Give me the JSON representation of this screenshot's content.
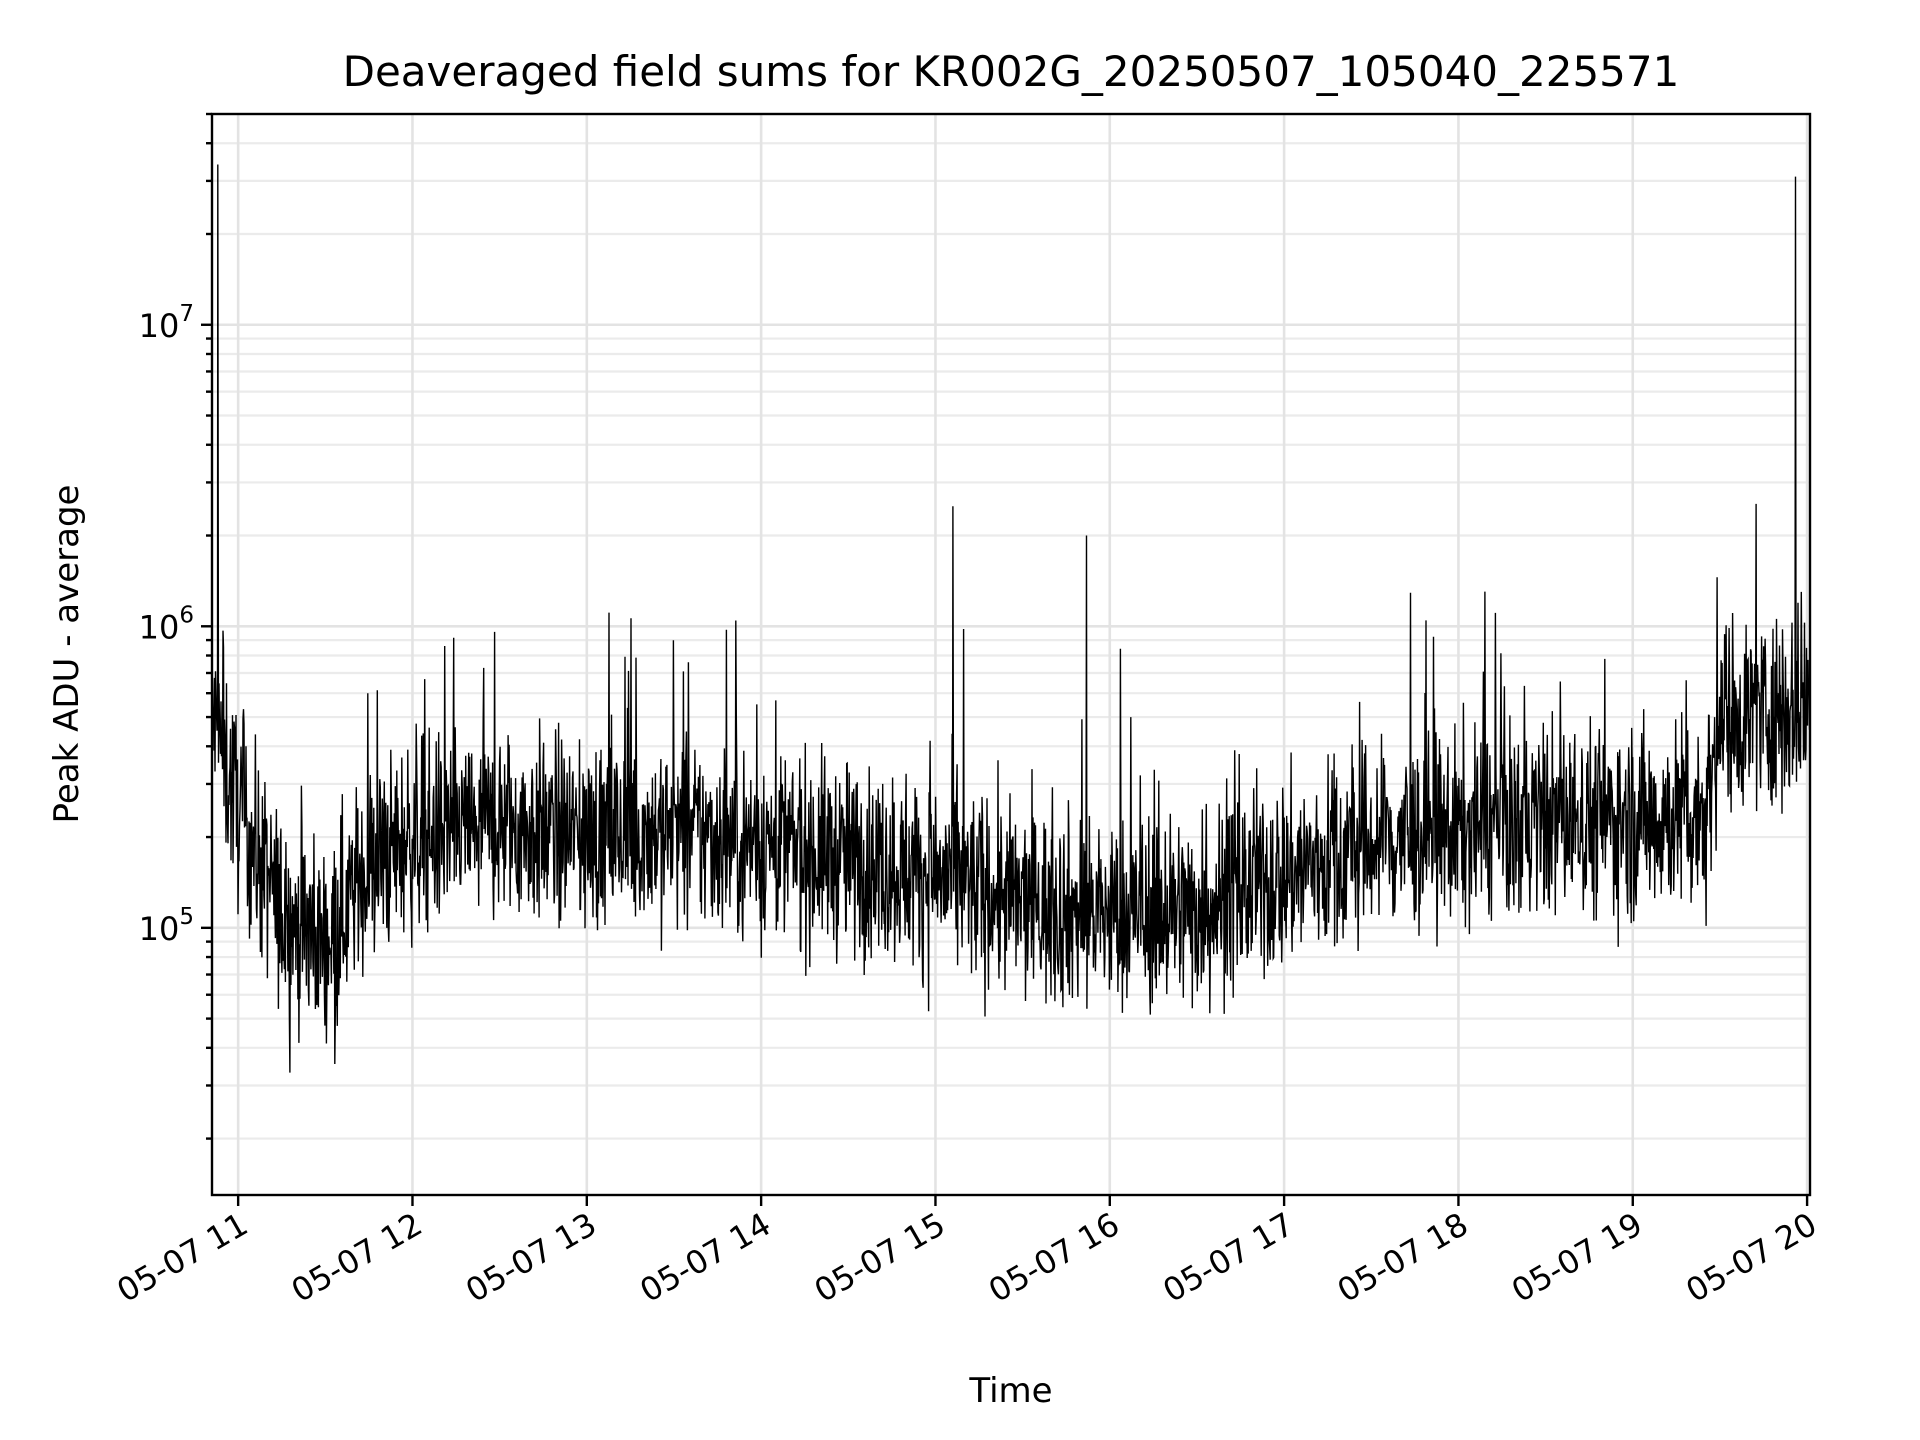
{
  "chart_data": {
    "type": "line",
    "title": "Deaveraged field sums for KR002G_20250507_105040_225571",
    "xlabel": "Time",
    "ylabel": "Peak ADU - average",
    "x_start": "2025-05-07T10:51:00",
    "x_end": "2025-05-07T20:01:00",
    "y_scale": "log",
    "ylim": [
      13000,
      50000000
    ],
    "grid": true,
    "legend": "none",
    "x_ticks": [
      "05-07 11",
      "05-07 12",
      "05-07 13",
      "05-07 14",
      "05-07 15",
      "05-07 16",
      "05-07 17",
      "05-07 18",
      "05-07 19",
      "05-07 20"
    ],
    "y_ticks": [
      {
        "value": 100000,
        "base": "10",
        "exp": "5"
      },
      {
        "value": 1000000,
        "base": "10",
        "exp": "6"
      },
      {
        "value": 10000000,
        "base": "10",
        "exp": "7"
      }
    ],
    "series_color": "#000000",
    "series": [
      {
        "values_note_free": true,
        "trend": [
          [
            "2025-05-07T10:51:00",
            500000
          ],
          [
            "2025-05-07T11:00:00",
            250000
          ],
          [
            "2025-05-07T11:15:00",
            110000
          ],
          [
            "2025-05-07T11:30:00",
            90000
          ],
          [
            "2025-05-07T11:45:00",
            160000
          ],
          [
            "2025-05-07T12:00:00",
            200000
          ],
          [
            "2025-05-07T12:30:00",
            220000
          ],
          [
            "2025-05-07T13:00:00",
            200000
          ],
          [
            "2025-05-07T13:30:00",
            210000
          ],
          [
            "2025-05-07T14:00:00",
            190000
          ],
          [
            "2025-05-07T14:30:00",
            170000
          ],
          [
            "2025-05-07T15:00:00",
            150000
          ],
          [
            "2025-05-07T15:30:00",
            120000
          ],
          [
            "2025-05-07T16:00:00",
            110000
          ],
          [
            "2025-05-07T16:30:00",
            115000
          ],
          [
            "2025-05-07T17:00:00",
            150000
          ],
          [
            "2025-05-07T17:30:00",
            190000
          ],
          [
            "2025-05-07T18:00:00",
            210000
          ],
          [
            "2025-05-07T18:30:00",
            230000
          ],
          [
            "2025-05-07T19:00:00",
            230000
          ],
          [
            "2025-05-07T19:25:00",
            240000
          ],
          [
            "2025-05-07T19:30:00",
            500000
          ],
          [
            "2025-05-07T20:01:00",
            550000
          ]
        ],
        "peaks": [
          [
            "2025-05-07T10:53:00",
            34000000
          ],
          [
            "2025-05-07T15:06:00",
            2500000
          ],
          [
            "2025-05-07T15:52:00",
            2000000
          ],
          [
            "2025-05-07T19:56:00",
            31000000
          ],
          [
            "2025-05-07T19:58:00",
            1300000
          ]
        ]
      }
    ]
  }
}
